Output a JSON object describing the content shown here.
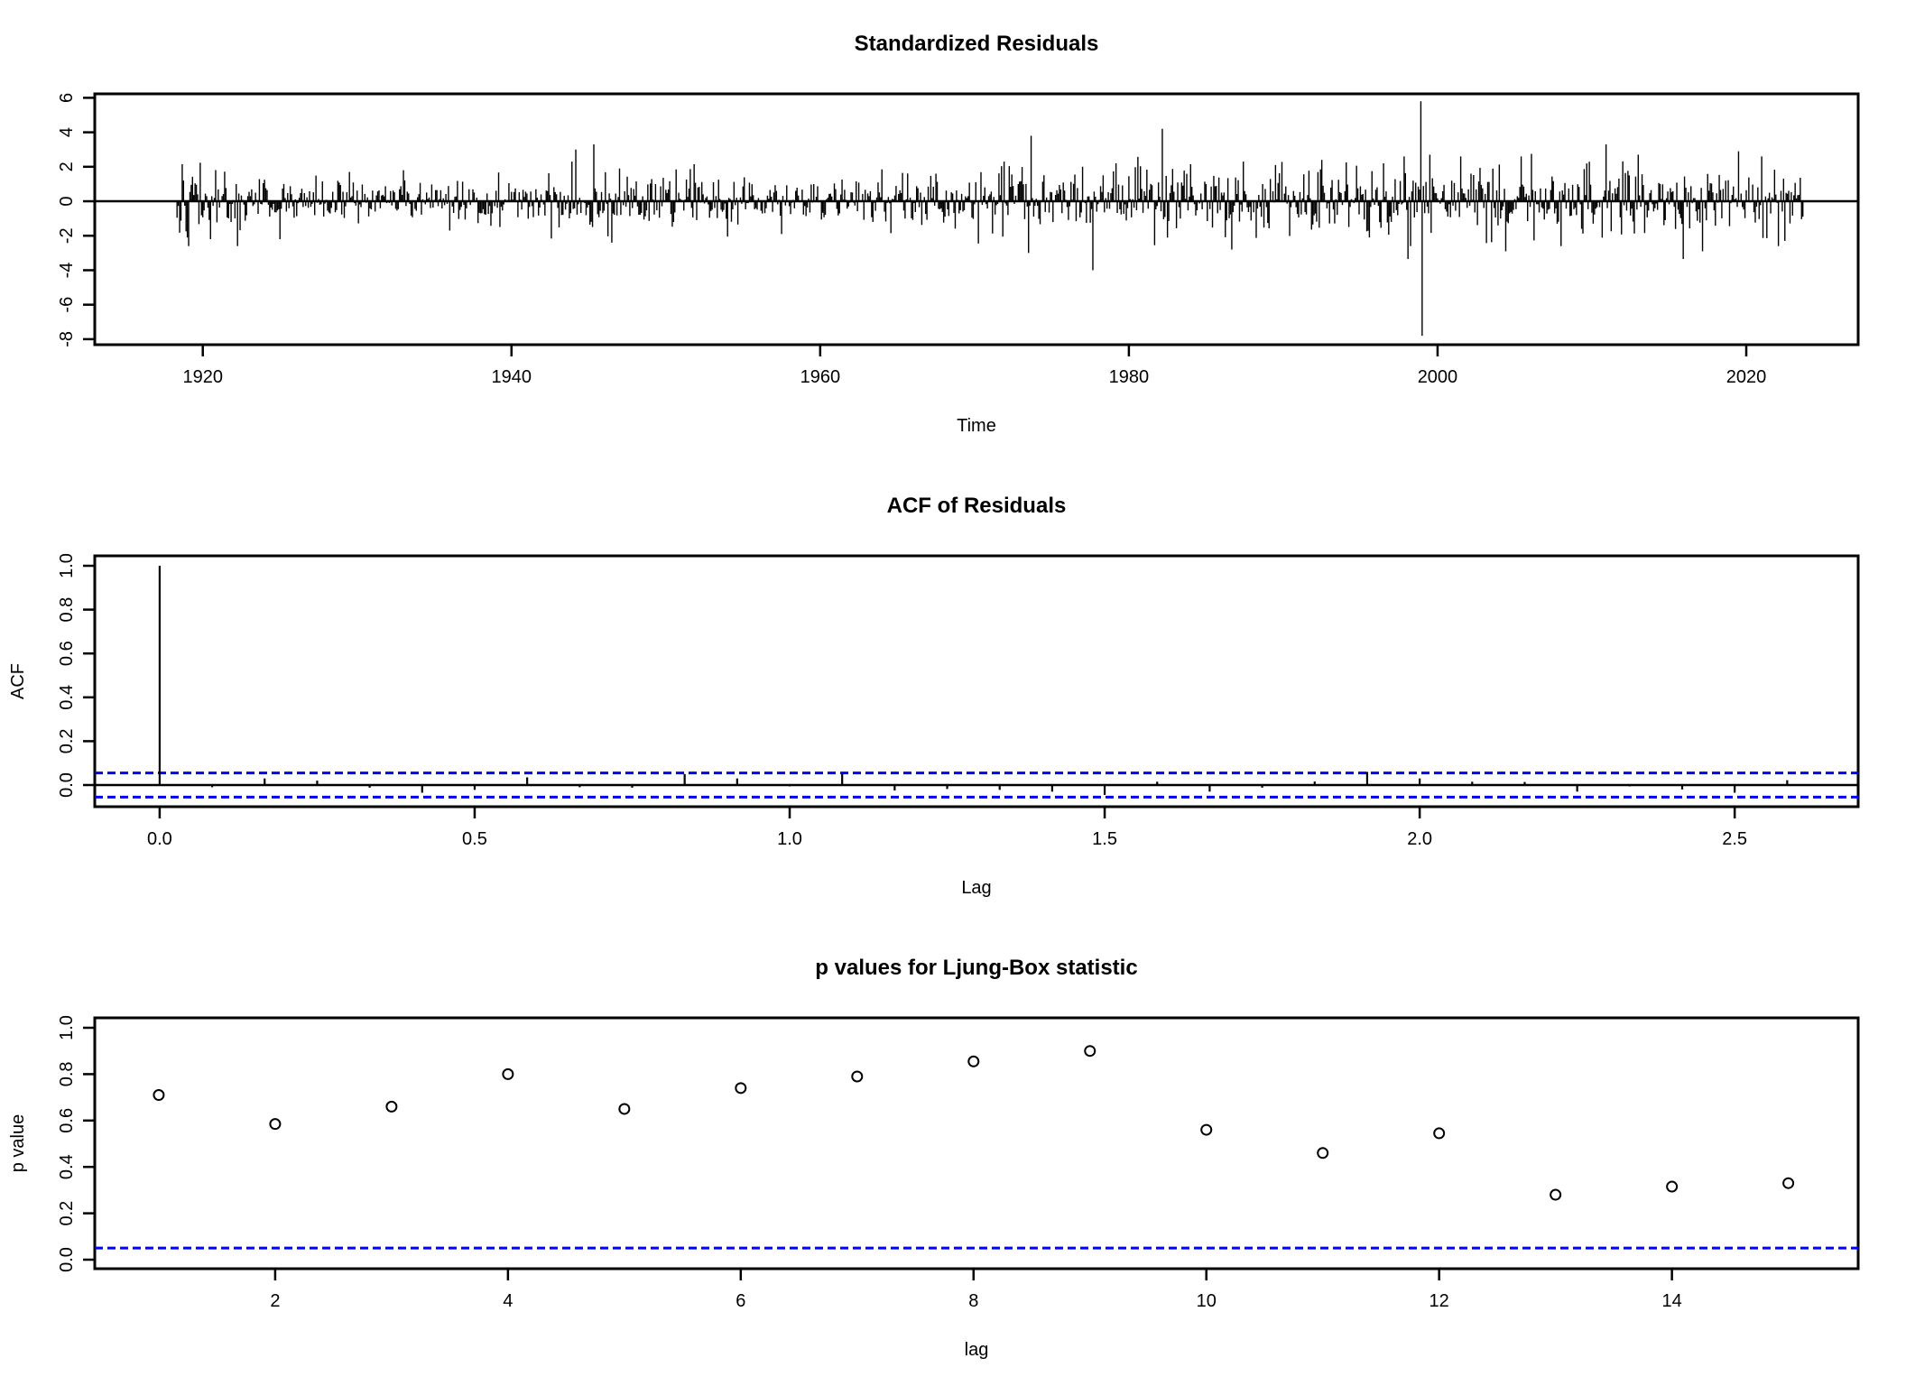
{
  "figure": {
    "background": "#ffffff",
    "foreground": "#000000",
    "accent_blue": "#0000ff"
  },
  "chart_data": [
    {
      "type": "line",
      "subtype": "vertical-bar-timeseries",
      "title": "Standardized Residuals",
      "xlabel": "Time",
      "ylabel": "",
      "xlim": [
        1913.0,
        2027.25
      ],
      "ylim": [
        -8.32,
        6.23
      ],
      "x_ticks": {
        "values": [
          1920,
          1940,
          1960,
          1980,
          2000,
          2020
        ],
        "labels": [
          "1920",
          "1940",
          "1960",
          "1980",
          "2000",
          "2020"
        ]
      },
      "y_ticks": {
        "values": [
          6,
          4,
          2,
          0,
          -2,
          -4,
          -6,
          -8
        ],
        "labels": [
          "6",
          "4",
          "2",
          "0",
          "-2",
          "-4",
          "-6",
          "-8"
        ]
      },
      "zero_line": 0,
      "series": {
        "start_year": 1918.333,
        "end_year": 2023.667,
        "frequency": 12,
        "noise_seed": 42,
        "noise_clip": 2.6,
        "sd_envelope": [
          [
            1918.33,
            1.0
          ],
          [
            1923,
            0.75
          ],
          [
            1928,
            0.6
          ],
          [
            1934,
            0.55
          ],
          [
            1940,
            0.65
          ],
          [
            1944,
            0.95
          ],
          [
            1947,
            0.8
          ],
          [
            1951,
            0.65
          ],
          [
            1958,
            0.6
          ],
          [
            1963,
            0.7
          ],
          [
            1968,
            0.75
          ],
          [
            1973,
            0.95
          ],
          [
            1978,
            0.9
          ],
          [
            1983,
            1.0
          ],
          [
            1988,
            0.95
          ],
          [
            1993,
            0.9
          ],
          [
            1999,
            1.0
          ],
          [
            2004,
            0.95
          ],
          [
            2010,
            1.05
          ],
          [
            2016,
            1.0
          ],
          [
            2023.58,
            0.95
          ]
        ],
        "notable_extremes": [
          [
            1918.67,
            2.15
          ],
          [
            1919.0,
            -2.1
          ],
          [
            1920.5,
            -2.2
          ],
          [
            1922.25,
            -2.6
          ],
          [
            1925.0,
            -2.2
          ],
          [
            1929.5,
            1.7
          ],
          [
            1933.0,
            1.8
          ],
          [
            1936.0,
            -1.7
          ],
          [
            1943.9,
            2.3
          ],
          [
            1944.17,
            3.0
          ],
          [
            1945.33,
            3.3
          ],
          [
            1946.5,
            -2.4
          ],
          [
            1947.0,
            1.9
          ],
          [
            1951.8,
            2.15
          ],
          [
            1954.0,
            -2.05
          ],
          [
            1957.5,
            -1.9
          ],
          [
            1964.0,
            1.85
          ],
          [
            1964.58,
            -1.85
          ],
          [
            1967.5,
            1.6
          ],
          [
            1971.8,
            -2.05
          ],
          [
            1971.92,
            2.3
          ],
          [
            1973.5,
            -3.0
          ],
          [
            1973.67,
            3.8
          ],
          [
            1977.0,
            2.0
          ],
          [
            1977.67,
            -4.0
          ],
          [
            1979.2,
            2.2
          ],
          [
            1981.7,
            -2.55
          ],
          [
            1982.17,
            4.2
          ],
          [
            1984.0,
            2.15
          ],
          [
            1986.7,
            -2.8
          ],
          [
            1987.4,
            2.3
          ],
          [
            1989.5,
            2.1
          ],
          [
            1992.5,
            2.4
          ],
          [
            1994.1,
            2.25
          ],
          [
            1995.6,
            -2.1
          ],
          [
            1996.5,
            2.2
          ],
          [
            1998.08,
            -3.35
          ],
          [
            1998.92,
            5.8
          ],
          [
            1999.0,
            -7.8
          ],
          [
            1999.5,
            2.7
          ],
          [
            2001.5,
            2.6
          ],
          [
            2004.42,
            -2.9
          ],
          [
            2005.42,
            2.6
          ],
          [
            2006.08,
            2.75
          ],
          [
            2008.0,
            -2.6
          ],
          [
            2010.92,
            3.3
          ],
          [
            2013.0,
            2.7
          ],
          [
            2015.92,
            -3.35
          ],
          [
            2017.2,
            -2.9
          ],
          [
            2019.5,
            2.9
          ],
          [
            2021.0,
            2.6
          ],
          [
            2022.5,
            -2.3
          ]
        ]
      }
    },
    {
      "type": "bar",
      "subtype": "acf-spikes",
      "title": "ACF of Residuals",
      "xlabel": "Lag",
      "ylabel": "ACF",
      "xlim": [
        -0.103,
        2.696
      ],
      "ylim": [
        -0.0988,
        1.0453
      ],
      "x_ticks": {
        "values": [
          0.0,
          0.5,
          1.0,
          1.5,
          2.0,
          2.5
        ],
        "labels": [
          "0.0",
          "0.5",
          "1.0",
          "1.5",
          "2.0",
          "2.5"
        ]
      },
      "y_ticks": {
        "values": [
          1.0,
          0.8,
          0.6,
          0.4,
          0.2,
          0.0
        ],
        "labels": [
          "1.0",
          "0.8",
          "0.6",
          "0.4",
          "0.2",
          "0.0"
        ]
      },
      "zero_line": 0,
      "frequency": 12,
      "confidence_band": 0.055,
      "lags": [
        0,
        1,
        2,
        3,
        4,
        5,
        6,
        7,
        8,
        9,
        10,
        11,
        12,
        13,
        14,
        15,
        16,
        17,
        18,
        19,
        20,
        21,
        22,
        23,
        24,
        25,
        26,
        27,
        28,
        29,
        30,
        31
      ],
      "values": [
        1.0,
        -0.01,
        0.03,
        0.02,
        -0.012,
        -0.035,
        -0.022,
        0.035,
        -0.01,
        -0.012,
        0.05,
        0.03,
        -0.006,
        0.05,
        -0.025,
        -0.018,
        -0.022,
        -0.03,
        -0.045,
        0.015,
        -0.03,
        -0.012,
        0.016,
        0.06,
        0.03,
        0.015,
        0.014,
        -0.03,
        -0.006,
        -0.02,
        -0.035,
        0.022
      ]
    },
    {
      "type": "scatter",
      "subtype": "open-circle-pvalues",
      "title": "p values for Ljung-Box statistic",
      "xlabel": "lag",
      "ylabel": "p value",
      "xlim": [
        0.45,
        15.6
      ],
      "ylim": [
        -0.0389,
        1.0428
      ],
      "x_ticks": {
        "values": [
          2,
          4,
          6,
          8,
          10,
          12,
          14
        ],
        "labels": [
          "2",
          "4",
          "6",
          "8",
          "10",
          "12",
          "14"
        ]
      },
      "y_ticks": {
        "values": [
          1.0,
          0.8,
          0.6,
          0.4,
          0.2,
          0.0
        ],
        "labels": [
          "1.0",
          "0.8",
          "0.6",
          "0.4",
          "0.2",
          "0.0"
        ]
      },
      "significance_threshold": 0.05,
      "lags": [
        1,
        2,
        3,
        4,
        5,
        6,
        7,
        8,
        9,
        10,
        11,
        12,
        13,
        14,
        15
      ],
      "p_values": [
        0.71,
        0.585,
        0.66,
        0.8,
        0.65,
        0.74,
        0.79,
        0.855,
        0.9,
        0.56,
        0.46,
        0.545,
        0.28,
        0.315,
        0.33
      ]
    }
  ]
}
